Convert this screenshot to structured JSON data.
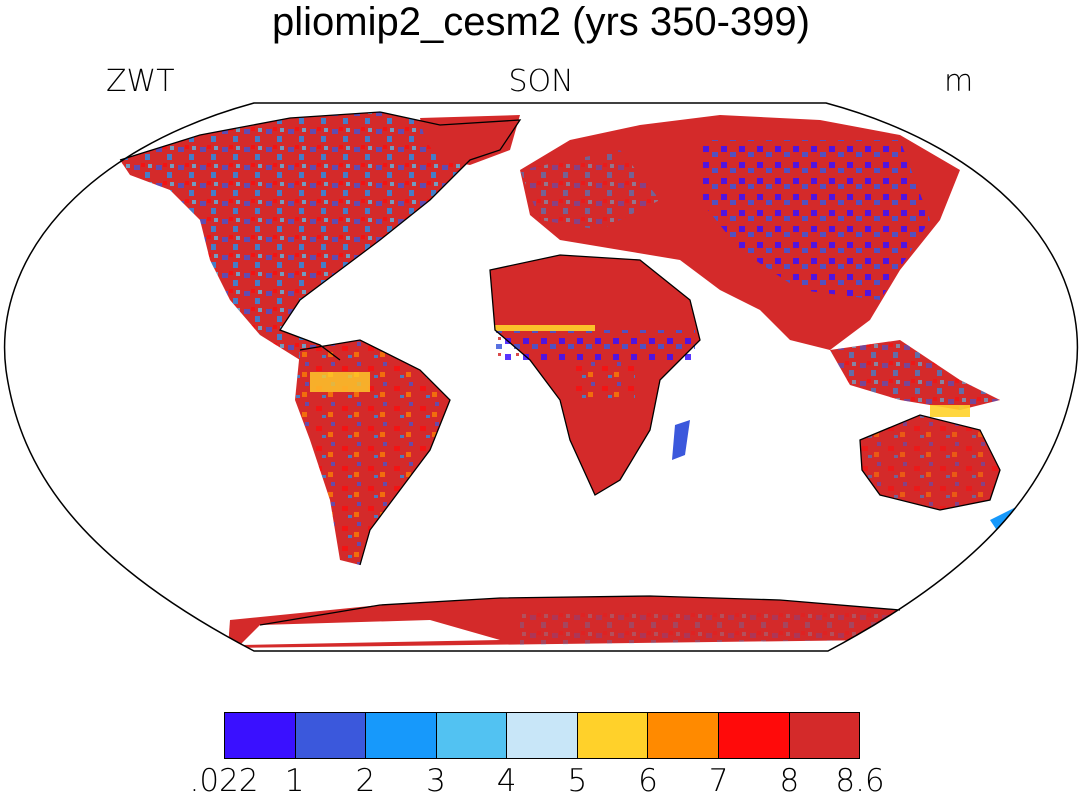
{
  "header": {
    "title": "pliomip2_cesm2 (yrs 350-399)",
    "left_label": "ZWT",
    "center_label": "SON",
    "right_label": "m"
  },
  "map": {
    "projection": "robinson",
    "region": "global",
    "land_dominant_color": "#d42a2a",
    "ocean_color": "#ffffff",
    "coastline_color": "#000000"
  },
  "colorbar": {
    "unit": "m",
    "colors": [
      "#3a10ff",
      "#3b58dc",
      "#1799fb",
      "#52c2f2",
      "#c8e6f8",
      "#ffd12a",
      "#ff8a00",
      "#ff0a0a",
      "#d42a2a"
    ],
    "labels": [
      ".022",
      "1",
      "2",
      "3",
      "4",
      "5",
      "6",
      "7",
      "8",
      "8.6"
    ]
  }
}
